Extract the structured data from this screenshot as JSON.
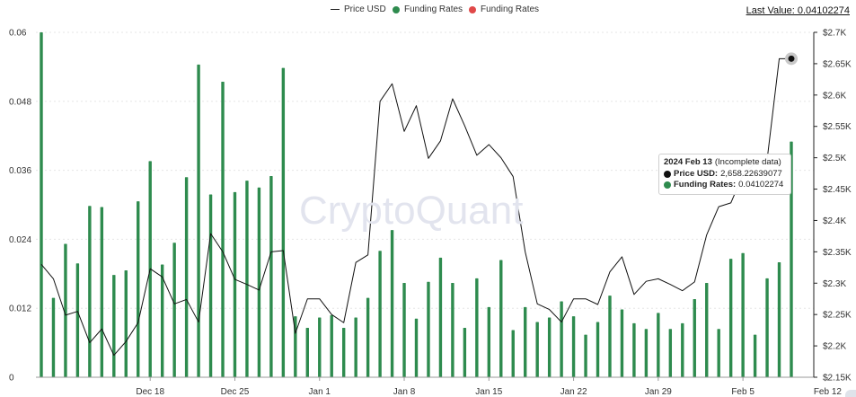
{
  "legend": {
    "price_label": "Price USD",
    "funding_label": "Funding Rates",
    "funding_label_2": "Funding Rates"
  },
  "last_value": "Last Value: 0.04102274",
  "watermark": "CryptoQuant",
  "tooltip": {
    "date": "2024 Feb 13",
    "note": "(Incomplete data)",
    "price_label": "Price USD:",
    "price_value": "2,658.22639077",
    "funding_label": "Funding Rates:",
    "funding_value": "0.04102274"
  },
  "colors": {
    "price_line": "#111111",
    "funding_bar": "#2e8b4e",
    "funding_negative": "#e04848"
  },
  "chart_data": {
    "type": "bar",
    "title": "",
    "x_ticks": [
      "Dec 18",
      "Dec 25",
      "Jan 1",
      "Jan 8",
      "Jan 15",
      "Jan 22",
      "Jan 29",
      "Feb 5",
      "Feb 12"
    ],
    "y_left": {
      "label": "Funding Rates",
      "range": [
        0,
        0.06
      ],
      "ticks": [
        "0",
        "0.012",
        "0.024",
        "0.036",
        "0.048",
        "0.06"
      ]
    },
    "y_right": {
      "label": "Price USD",
      "range": [
        2150,
        2700
      ],
      "ticks": [
        "$2.15K",
        "$2.2K",
        "$2.25K",
        "$2.3K",
        "$2.35K",
        "$2.4K",
        "$2.45K",
        "$2.5K",
        "$2.55K",
        "$2.6K",
        "$2.65K",
        "$2.7K"
      ]
    },
    "series": [
      {
        "name": "Funding Rates",
        "type": "bar",
        "values": [
          0.06,
          0.0138,
          0.0232,
          0.0198,
          0.0298,
          0.0296,
          0.0178,
          0.0186,
          0.0306,
          0.0376,
          0.0196,
          0.0234,
          0.0348,
          0.0544,
          0.0318,
          0.0514,
          0.0322,
          0.0342,
          0.033,
          0.035,
          0.0538,
          0.0106,
          0.0086,
          0.0104,
          0.0108,
          0.0086,
          0.0104,
          0.0138,
          0.022,
          0.0256,
          0.0164,
          0.0102,
          0.0166,
          0.0208,
          0.0164,
          0.0086,
          0.0172,
          0.0122,
          0.0204,
          0.0082,
          0.0122,
          0.0096,
          0.0104,
          0.0132,
          0.0106,
          0.0074,
          0.0096,
          0.0142,
          0.0118,
          0.0094,
          0.0084,
          0.0112,
          0.0084,
          0.0094,
          0.0136,
          0.0164,
          0.0084,
          0.0206,
          0.0216,
          0.0074,
          0.0172,
          0.02,
          0.041
        ]
      },
      {
        "name": "Price USD",
        "type": "line",
        "values": [
          2330,
          2307,
          2249,
          2255,
          2205,
          2227,
          2185,
          2207,
          2237,
          2323,
          2310,
          2267,
          2274,
          2238,
          2379,
          2350,
          2306,
          2298,
          2289,
          2350,
          2352,
          2220,
          2275,
          2275,
          2250,
          2237,
          2333,
          2345,
          2590,
          2618,
          2542,
          2583,
          2499,
          2527,
          2594,
          2551,
          2504,
          2521,
          2500,
          2470,
          2350,
          2267,
          2258,
          2238,
          2275,
          2275,
          2266,
          2318,
          2342,
          2282,
          2303,
          2307,
          2298,
          2288,
          2302,
          2377,
          2422,
          2428,
          2473,
          2491,
          2497,
          2658,
          2658
        ]
      }
    ]
  }
}
